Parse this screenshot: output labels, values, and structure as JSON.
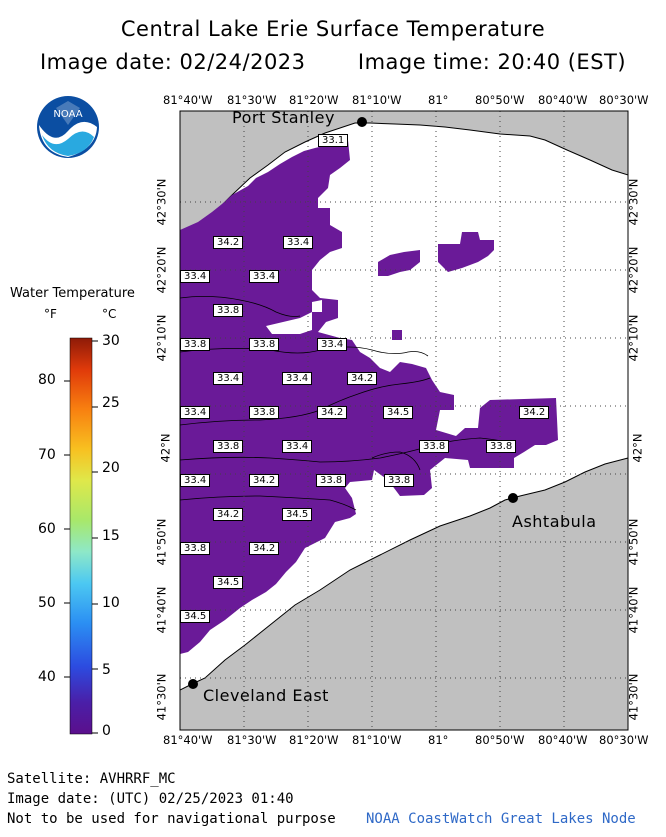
{
  "title": "Central Lake Erie Surface Temperature",
  "image_date_label": "Image date: 02/24/2023",
  "image_time_label": "Image time: 20:40 (EST)",
  "logo_text": "NOAA",
  "legend": {
    "title": "Water Temperature",
    "unit_f": "°F",
    "unit_c": "°C",
    "f_ticks": [
      "80",
      "70",
      "60",
      "50",
      "40"
    ],
    "c_ticks": [
      "30",
      "25",
      "20",
      "15",
      "10",
      "5",
      "0"
    ]
  },
  "lon_labels": [
    "81°40'W",
    "81°30'W",
    "81°20'W",
    "81°10'W",
    "81°",
    "80°50'W",
    "80°40'W",
    "80°30'W"
  ],
  "lat_labels": [
    "42°30'N",
    "42°20'N",
    "42°10'N",
    "42°N",
    "41°50'N",
    "41°40'N",
    "41°30'N"
  ],
  "places": {
    "port_stanley": "Port Stanley",
    "ashtabula": "Ashtabula",
    "cleveland": "Cleveland East"
  },
  "temps": [
    {
      "v": "33.1"
    },
    {
      "v": "34.2"
    },
    {
      "v": "33.4"
    },
    {
      "v": "33.4"
    },
    {
      "v": "33.4"
    },
    {
      "v": "33.8"
    },
    {
      "v": "33.8"
    },
    {
      "v": "33.8"
    },
    {
      "v": "33.4"
    },
    {
      "v": "33.4"
    },
    {
      "v": "33.4"
    },
    {
      "v": "34.2"
    },
    {
      "v": "33.4"
    },
    {
      "v": "33.8"
    },
    {
      "v": "34.2"
    },
    {
      "v": "34.5"
    },
    {
      "v": "34.2"
    },
    {
      "v": "33.8"
    },
    {
      "v": "33.4"
    },
    {
      "v": "33.8"
    },
    {
      "v": "33.8"
    },
    {
      "v": "33.4"
    },
    {
      "v": "34.2"
    },
    {
      "v": "33.8"
    },
    {
      "v": "33.8"
    },
    {
      "v": "34.2"
    },
    {
      "v": "34.5"
    },
    {
      "v": "33.8"
    },
    {
      "v": "34.2"
    },
    {
      "v": "34.5"
    },
    {
      "v": "34.5"
    }
  ],
  "footer": {
    "satellite": "Satellite: AVHRRF_MC",
    "utc": "Image date: (UTC) 02/25/2023  01:40",
    "disclaimer": "Not to be used for navigational purpose",
    "credit": "NOAA CoastWatch Great Lakes Node"
  },
  "colors": {
    "land": "#c0c0c0",
    "lake_no_data": "#ffffff",
    "cold_water": "#6a1a98",
    "dot_grid": "#444444"
  }
}
